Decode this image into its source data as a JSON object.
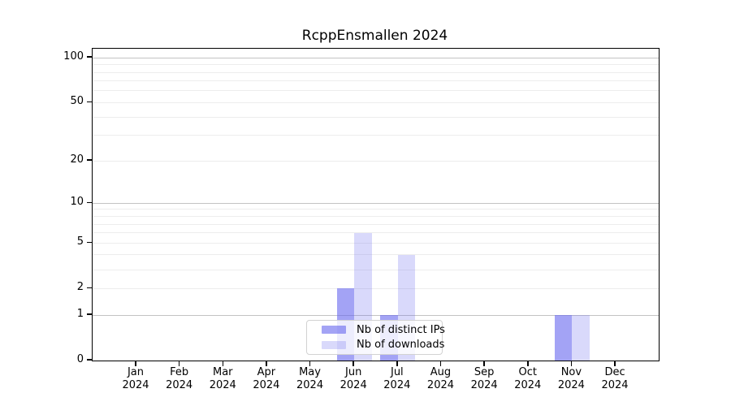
{
  "chart_data": {
    "type": "bar",
    "title": "RcppEnsmallen 2024",
    "categories": [
      "Jan",
      "Feb",
      "Mar",
      "Apr",
      "May",
      "Jun",
      "Jul",
      "Aug",
      "Sep",
      "Oct",
      "Nov",
      "Dec"
    ],
    "category_year": "2024",
    "series": [
      {
        "name": "Nb of distinct IPs",
        "color": "rgba(102,102,238,0.6)",
        "values": [
          0,
          0,
          0,
          0,
          0,
          2,
          1,
          0,
          0,
          0,
          1,
          0
        ]
      },
      {
        "name": "Nb of downloads",
        "color": "rgba(102,102,238,0.25)",
        "values": [
          0,
          0,
          0,
          0,
          0,
          6,
          4,
          0,
          0,
          0,
          1,
          0
        ]
      }
    ],
    "xlabel": "",
    "ylabel": "",
    "y_axis": {
      "scale": "log1p",
      "tick_values": [
        0,
        1,
        2,
        5,
        10,
        20,
        50,
        100
      ],
      "ylim": [
        0,
        115
      ],
      "major_grid_values": [
        1,
        10,
        100
      ],
      "minor_grid_values": [
        2,
        3,
        4,
        5,
        6,
        7,
        8,
        9,
        20,
        30,
        40,
        50,
        60,
        70,
        80,
        90
      ]
    },
    "legend": {
      "position": "lower center, inside plot",
      "semi_transparent": true
    },
    "grid": "on"
  },
  "colors": {
    "background": "#ffffff",
    "spine": "#000000",
    "text": "#000000",
    "major_grid": "#c3c3c3",
    "minor_grid": "#ededed",
    "legend_border": "#d2d2d2"
  }
}
